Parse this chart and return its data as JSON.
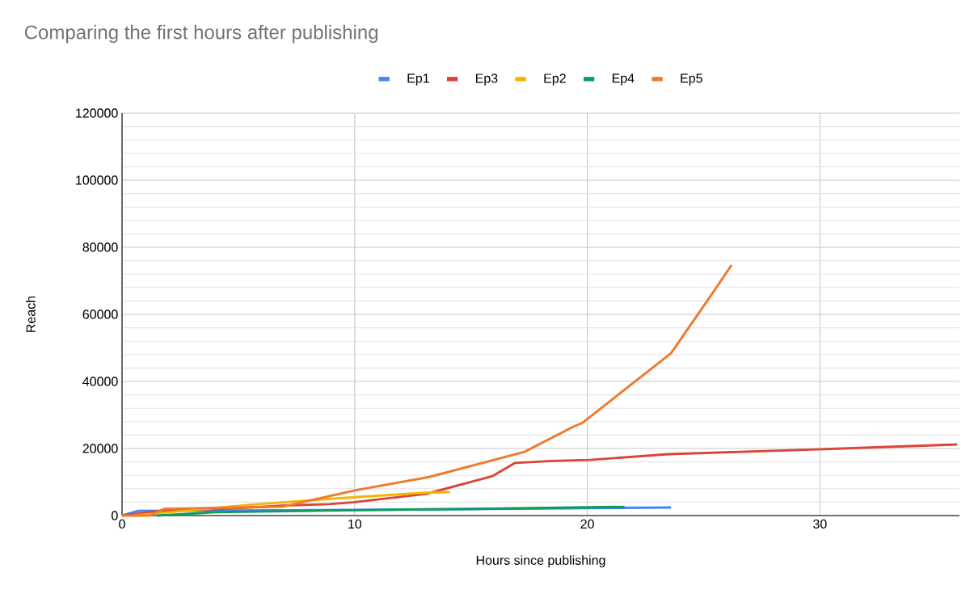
{
  "chart_data": {
    "type": "line",
    "title": "Comparing the first hours after publishing",
    "xlabel": "Hours since publishing",
    "ylabel": "Reach",
    "xlim": [
      0,
      36
    ],
    "xticks": [
      0,
      10,
      20,
      30
    ],
    "ylim": [
      0,
      120000
    ],
    "yticks": [
      0,
      20000,
      40000,
      60000,
      80000,
      100000,
      120000
    ],
    "grid": true,
    "legend": "top",
    "marker": "none",
    "line_style": "solid",
    "series": [
      {
        "name": "Ep1",
        "color": "#4285f4",
        "x": [
          0,
          0.7,
          5,
          10,
          15,
          20,
          23.6
        ],
        "values": [
          0,
          1400,
          1500,
          1700,
          1900,
          2200,
          2400
        ]
      },
      {
        "name": "Ep3",
        "color": "#db4437",
        "x": [
          0,
          1.8,
          5,
          7,
          8.9,
          10,
          13.1,
          15.9,
          16.9,
          18.5,
          20.1,
          23.5,
          30.2,
          35.9
        ],
        "values": [
          0,
          1500,
          2200,
          3000,
          3400,
          4000,
          6500,
          11700,
          15700,
          16300,
          16600,
          18300,
          19800,
          21200
        ]
      },
      {
        "name": "Ep2",
        "color": "#f4b400",
        "x": [
          0.5,
          2,
          5.3,
          7,
          10,
          13,
          14.1
        ],
        "values": [
          0,
          1000,
          3100,
          4000,
          5500,
          6800,
          7000
        ]
      },
      {
        "name": "Ep4",
        "color": "#0f9d58",
        "x": [
          1.5,
          4,
          10,
          15,
          21.6
        ],
        "values": [
          0,
          1000,
          1600,
          2000,
          2600
        ]
      },
      {
        "name": "Ep5",
        "color": "#ee7a2d",
        "x": [
          0,
          1.2,
          1.8,
          4,
          6.9,
          10,
          13.2,
          17.3,
          19.4,
          19.8,
          23.6,
          25.5,
          26.2
        ],
        "values": [
          0,
          0,
          2000,
          2300,
          2650,
          7500,
          11500,
          19000,
          26500,
          27700,
          48400,
          67500,
          74700
        ]
      }
    ]
  }
}
